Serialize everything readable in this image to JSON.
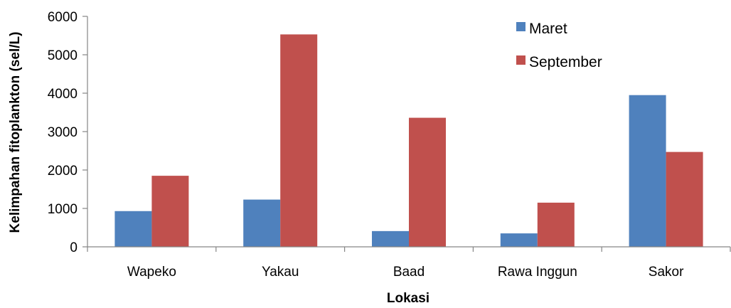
{
  "chart_data": {
    "type": "bar",
    "title": "",
    "xlabel": "Lokasi",
    "ylabel": "Kelimpahan fitoplankton (sel/L)",
    "categories": [
      "Wapeko",
      "Yakau",
      "Baad",
      "Rawa Inggun",
      "Sakor"
    ],
    "series": [
      {
        "name": "Maret",
        "color": "#4F81BD",
        "values": [
          930,
          1230,
          410,
          350,
          3950
        ]
      },
      {
        "name": "September",
        "color": "#C0504D",
        "values": [
          1850,
          5530,
          3360,
          1150,
          2470
        ]
      }
    ],
    "ylim": [
      0,
      6000
    ],
    "yticks": [
      0,
      1000,
      2000,
      3000,
      4000,
      5000,
      6000
    ],
    "grid": false,
    "legend": "top-right"
  }
}
